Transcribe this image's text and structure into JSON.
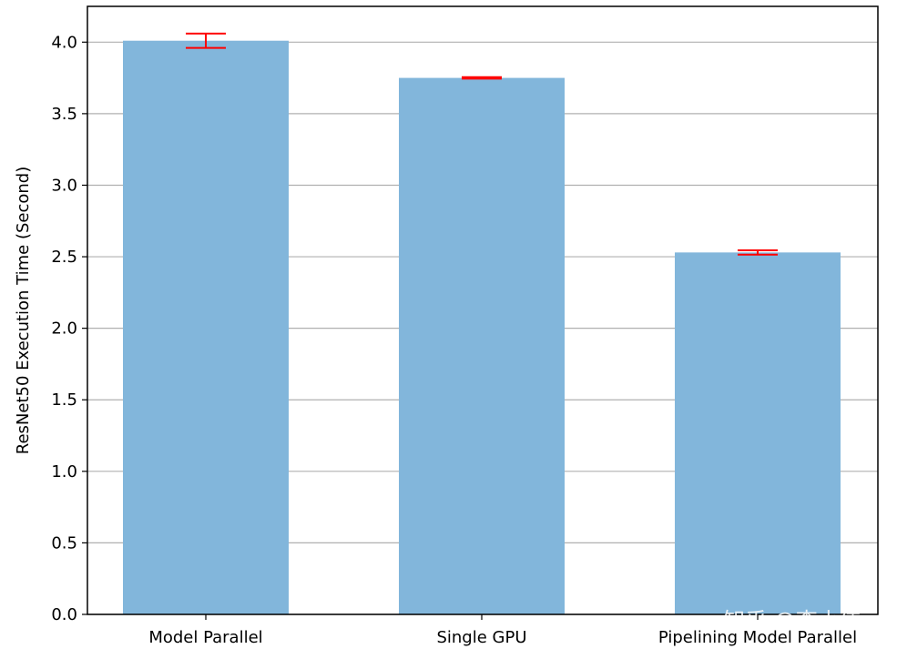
{
  "chart_data": {
    "type": "bar",
    "categories": [
      "Model Parallel",
      "Single GPU",
      "Pipelining Model Parallel"
    ],
    "values": [
      4.01,
      3.75,
      2.53
    ],
    "error_bars": [
      0.05,
      0.005,
      0.015
    ],
    "ylabel": "ResNet50 Execution Time (Second)",
    "xlabel": "",
    "title": "",
    "ylim": [
      0,
      4.25
    ],
    "yticks": [
      "0.0",
      "0.5",
      "1.0",
      "1.5",
      "2.0",
      "2.5",
      "3.0",
      "3.5",
      "4.0"
    ],
    "grid": "horizontal",
    "colors": {
      "bar": "#82b6db",
      "error": "#ff0000",
      "grid": "#b0b0b0",
      "axis": "#000000"
    }
  },
  "watermark": "知乎 @李小伟"
}
